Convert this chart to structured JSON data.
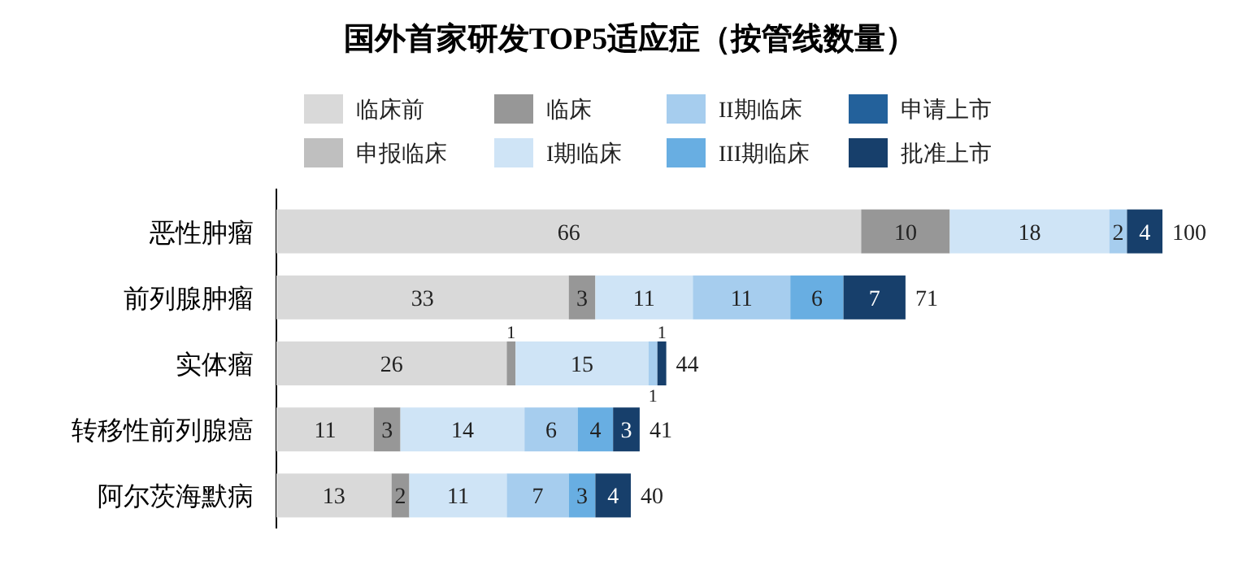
{
  "chart_data": {
    "type": "bar",
    "title": "国外首家研发TOP5适应症（按管线数量）",
    "orientation": "horizontal",
    "stacked": true,
    "data_labels": true,
    "legend": "top",
    "categories": [
      "恶性肿瘤",
      "前列腺肿瘤",
      "实体瘤",
      "转移性前列腺癌",
      "阿尔茨海默病"
    ],
    "series": [
      {
        "name": "临床前",
        "color": "#d9d9d9",
        "values": [
          66,
          33,
          26,
          11,
          13
        ]
      },
      {
        "name": "申报临床",
        "color": "#bfbfbf",
        "values": [
          null,
          null,
          null,
          null,
          null
        ]
      },
      {
        "name": "临床",
        "color": "#979797",
        "values": [
          10,
          3,
          1,
          3,
          2
        ]
      },
      {
        "name": "I期临床",
        "color": "#cfe4f6",
        "values": [
          18,
          11,
          15,
          14,
          11
        ]
      },
      {
        "name": "II期临床",
        "color": "#a6cdee",
        "values": [
          2,
          11,
          1,
          6,
          7
        ]
      },
      {
        "name": "III期临床",
        "color": "#68aee2",
        "values": [
          null,
          6,
          null,
          4,
          3
        ]
      },
      {
        "name": "申请上市",
        "color": "#23619b",
        "values": [
          null,
          null,
          null,
          null,
          null
        ]
      },
      {
        "name": "批准上市",
        "color": "#173f6b",
        "values": [
          4,
          7,
          1,
          3,
          4
        ]
      }
    ],
    "totals": [
      "100",
      "71",
      "44",
      "41",
      "40"
    ]
  }
}
